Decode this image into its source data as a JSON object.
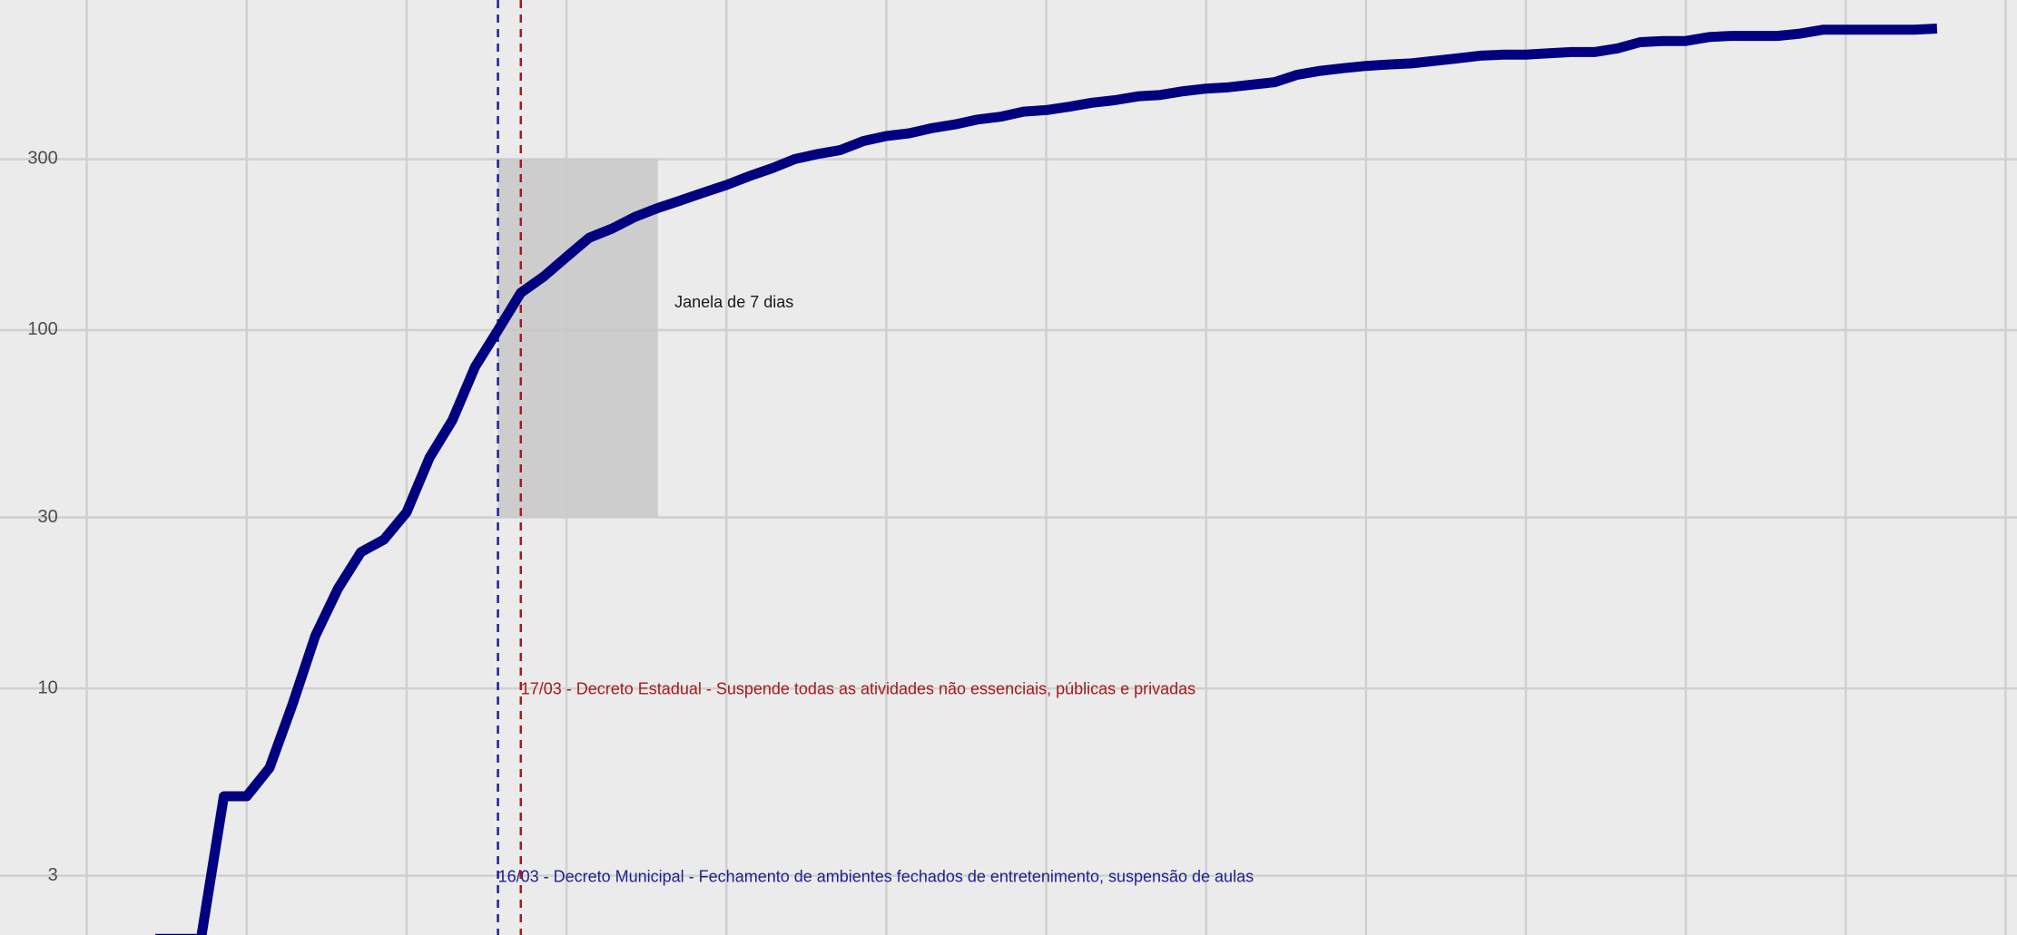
{
  "chart_data": {
    "type": "line",
    "x": [
      3,
      4,
      5,
      6,
      7,
      8,
      9,
      10,
      11,
      12,
      13,
      14,
      15,
      16,
      17,
      18,
      19,
      20,
      21,
      22,
      23,
      24,
      25,
      26,
      27,
      28,
      29,
      30,
      31,
      32,
      33,
      34,
      35,
      36,
      37,
      38,
      39,
      40,
      41,
      42,
      43,
      44,
      45,
      46,
      47,
      48,
      49,
      50,
      51,
      52,
      53,
      54,
      55,
      56,
      57,
      58,
      59,
      60,
      61,
      62,
      63,
      64,
      65,
      66,
      67,
      68,
      69,
      70,
      71,
      72,
      73,
      74,
      75,
      76,
      77,
      78,
      79,
      80,
      81
    ],
    "values": [
      2,
      2,
      2,
      5,
      5,
      6,
      9,
      14,
      19,
      24,
      26,
      31,
      44,
      56,
      79,
      100,
      127,
      141,
      160,
      181,
      192,
      207,
      219,
      230,
      242,
      254,
      269,
      283,
      300,
      310,
      318,
      337,
      348,
      354,
      366,
      375,
      387,
      394,
      407,
      411,
      420,
      431,
      438,
      449,
      453,
      464,
      472,
      476,
      484,
      492,
      516,
      529,
      538,
      546,
      551,
      555,
      564,
      573,
      583,
      587,
      587,
      592,
      597,
      597,
      611,
      636,
      641,
      641,
      657,
      662,
      662,
      662,
      672,
      689,
      689,
      689,
      689,
      689,
      694
    ],
    "color": "#000080",
    "xlim": [
      -3.8,
      84.5
    ],
    "xticks": [
      0,
      7,
      14,
      21,
      28,
      35,
      42,
      49,
      56,
      63,
      70,
      77,
      84
    ],
    "ylim": [
      2.05,
      834
    ],
    "yticks": [
      3,
      10,
      30,
      100,
      300
    ],
    "log_y": true,
    "grid": true,
    "vlines": [
      {
        "x": 18,
        "label": "16/03 - Decreto Municipal - Fechamento de ambientes fechados de entretenimento, suspensão de aulas",
        "color": "#1f1f8f"
      },
      {
        "x": 19,
        "label": "17/03 - Decreto Estadual - Suspende todas as atividades não essenciais, públicas e privadas",
        "color": "#a31b1b"
      }
    ],
    "shade": {
      "xlim": [
        18,
        25
      ],
      "ylim": [
        30,
        300
      ],
      "label": "Janela de 7 dias",
      "color": "#c8c8c8"
    }
  }
}
